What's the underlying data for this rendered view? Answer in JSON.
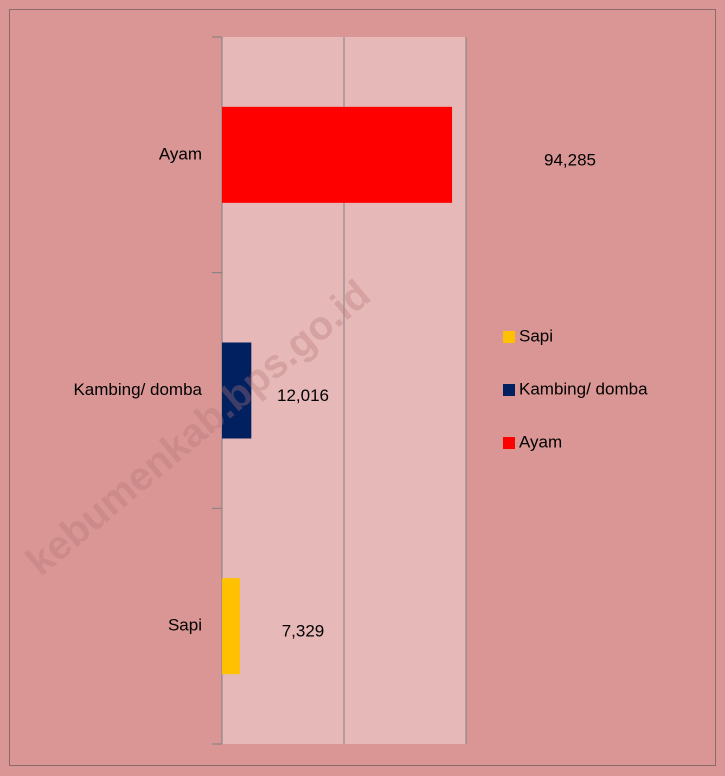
{
  "chart_data": {
    "type": "barh",
    "categories": [
      "Sapi",
      "Kambing/ domba",
      "Ayam"
    ],
    "values": [
      7329,
      12016,
      94285
    ],
    "value_labels": [
      "7,329",
      "12,016",
      "94,285"
    ],
    "colors": [
      "#ffc000",
      "#002060",
      "#ff0000"
    ],
    "xlim": [
      0,
      100000
    ],
    "xticks": [
      0,
      50000,
      100000
    ],
    "grid": true,
    "legend": "right",
    "watermark": "kebumenkab.bps.go.id"
  }
}
